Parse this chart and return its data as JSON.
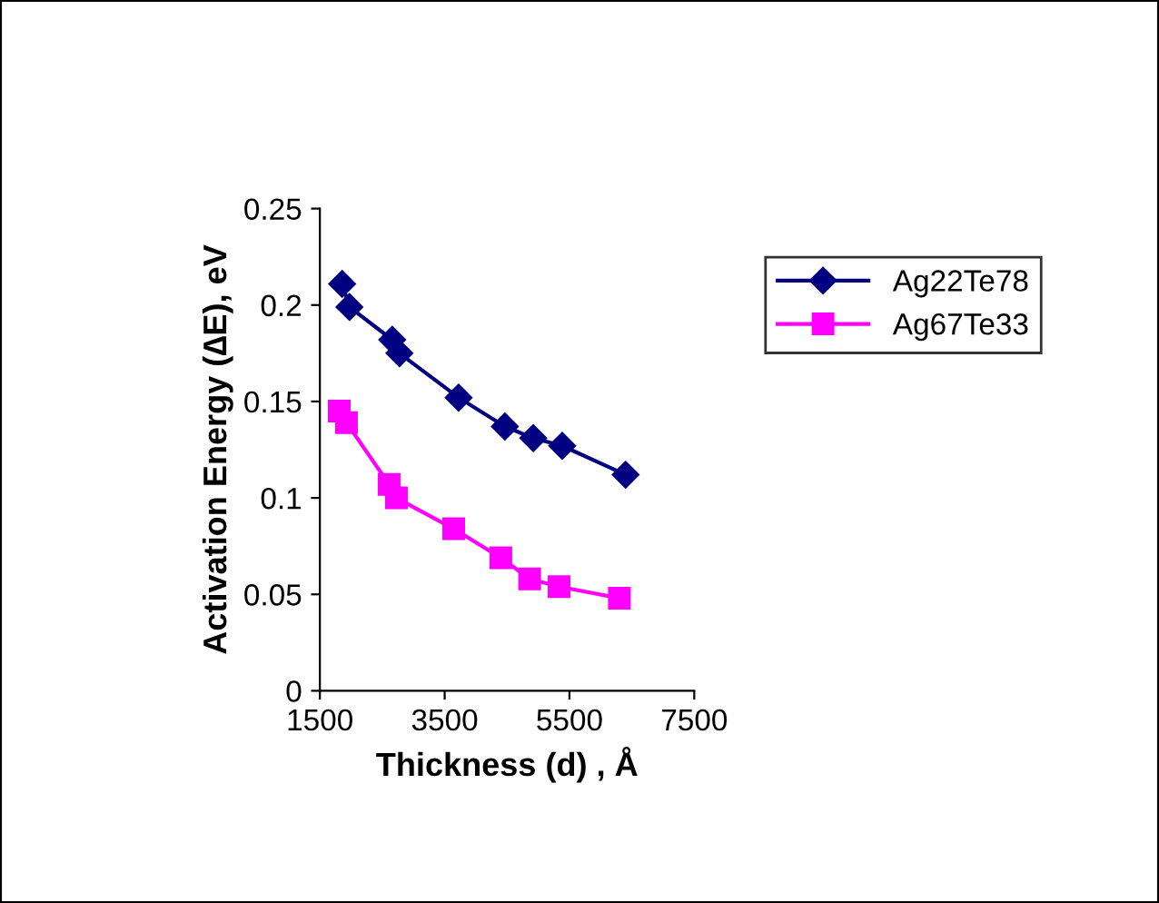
{
  "chart_data": {
    "type": "line",
    "xlabel": "Thickness (d) , Å",
    "ylabel": "Activation Energy (∆E), eV",
    "xlim": [
      1500,
      7500
    ],
    "xticks": [
      1500,
      3500,
      5500,
      7500
    ],
    "ylim": [
      0,
      0.25
    ],
    "yticks": [
      0,
      0.05,
      0.1,
      0.15,
      0.2,
      0.25
    ],
    "grid": false,
    "legend": "right",
    "series": [
      {
        "name": "Ag22Te78",
        "color": "#000080",
        "marker": "diamond",
        "x": [
          1857,
          1973,
          2659,
          2775,
          3723,
          4465,
          4920,
          5384,
          6400
        ],
        "values": [
          0.211,
          0.199,
          0.182,
          0.175,
          0.152,
          0.137,
          0.131,
          0.127,
          0.112
        ]
      },
      {
        "name": "Ag67Te33",
        "color": "#ff00ff",
        "marker": "square",
        "x": [
          1810,
          1926,
          2610,
          2727,
          3645,
          4400,
          4862,
          5333,
          6300
        ],
        "values": [
          0.145,
          0.139,
          0.107,
          0.1,
          0.084,
          0.069,
          0.058,
          0.054,
          0.048
        ]
      }
    ]
  }
}
